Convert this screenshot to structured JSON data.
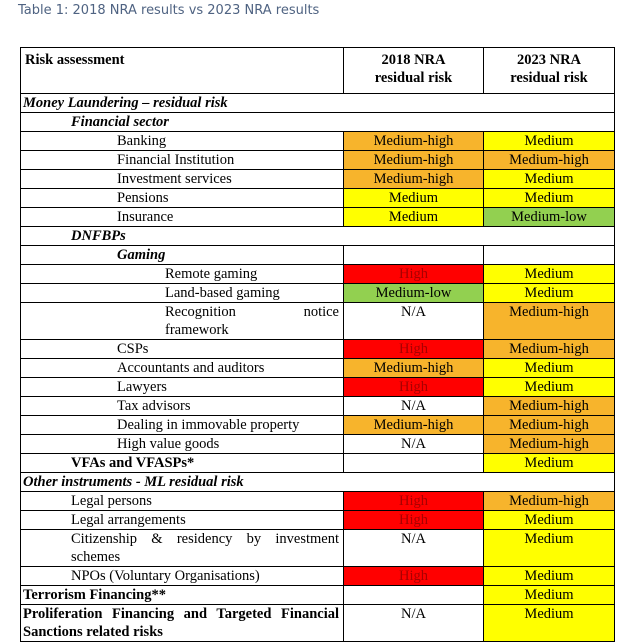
{
  "caption": "Table 1: 2018 NRA results vs 2023 NRA results",
  "table": {
    "header": {
      "label": "Risk assessment",
      "col2018": [
        "2018 NRA",
        "residual risk"
      ],
      "col2023": [
        "2023 NRA",
        "residual risk"
      ]
    },
    "rows": [
      {
        "label": "Money Laundering – residual risk",
        "level": 0,
        "style": "bold-italic"
      },
      {
        "label": "Financial sector",
        "level": 1,
        "style": "bold-italic"
      },
      {
        "label": "Banking",
        "level": 2,
        "style": "normal",
        "r2018": {
          "text": "Medium-high",
          "fill": "#f7b42c"
        },
        "r2023": {
          "text": "Medium",
          "fill": "#ffff00"
        }
      },
      {
        "label": "Financial Institution",
        "level": 2,
        "style": "normal",
        "r2018": {
          "text": "Medium-high",
          "fill": "#f7b42c"
        },
        "r2023": {
          "text": "Medium-high",
          "fill": "#f7b42c"
        }
      },
      {
        "label": "Investment services",
        "level": 2,
        "style": "normal",
        "r2018": {
          "text": "Medium-high",
          "fill": "#f7b42c"
        },
        "r2023": {
          "text": "Medium",
          "fill": "#ffff00"
        }
      },
      {
        "label": "Pensions",
        "level": 2,
        "style": "normal",
        "r2018": {
          "text": "Medium",
          "fill": "#ffff00"
        },
        "r2023": {
          "text": "Medium",
          "fill": "#ffff00"
        }
      },
      {
        "label": "Insurance",
        "level": 2,
        "style": "normal",
        "r2018": {
          "text": "Medium",
          "fill": "#ffff00"
        },
        "r2023": {
          "text": "Medium-low",
          "fill": "#92d050"
        }
      },
      {
        "label": "DNFBPs",
        "level": 1,
        "style": "bold-italic"
      },
      {
        "label": "Gaming",
        "level": 2,
        "style": "bold-italic",
        "r2018": null,
        "r2023": null
      },
      {
        "label": "Remote gaming",
        "level": 3,
        "style": "normal",
        "r2018": {
          "text": "High",
          "fill": "#ff0000",
          "ink": "#a80000"
        },
        "r2023": {
          "text": "Medium",
          "fill": "#ffff00"
        }
      },
      {
        "label": "Land-based gaming",
        "level": 3,
        "style": "normal",
        "r2018": {
          "text": "Medium-low",
          "fill": "#92d050"
        },
        "r2023": {
          "text": "Medium",
          "fill": "#ffff00"
        }
      },
      {
        "label": "Recognition notice framework",
        "level": 3,
        "style": "normal",
        "r2018": {
          "text": "N/A",
          "fill": "#ffffff"
        },
        "r2023": {
          "text": "Medium-high",
          "fill": "#f7b42c"
        }
      },
      {
        "label": "CSPs",
        "level": 2,
        "style": "normal",
        "r2018": {
          "text": "High",
          "fill": "#ff0000",
          "ink": "#a80000"
        },
        "r2023": {
          "text": "Medium-high",
          "fill": "#f7b42c"
        }
      },
      {
        "label": "Accountants and auditors",
        "level": 2,
        "style": "normal",
        "r2018": {
          "text": "Medium-high",
          "fill": "#f7b42c"
        },
        "r2023": {
          "text": "Medium",
          "fill": "#ffff00"
        }
      },
      {
        "label": "Lawyers",
        "level": 2,
        "style": "normal",
        "r2018": {
          "text": "High",
          "fill": "#ff0000",
          "ink": "#a80000"
        },
        "r2023": {
          "text": "Medium",
          "fill": "#ffff00"
        }
      },
      {
        "label": "Tax advisors",
        "level": 2,
        "style": "normal",
        "r2018": {
          "text": "N/A",
          "fill": "#ffffff"
        },
        "r2023": {
          "text": "Medium-high",
          "fill": "#f7b42c"
        }
      },
      {
        "label": "Dealing in immovable property",
        "level": 2,
        "style": "normal",
        "r2018": {
          "text": "Medium-high",
          "fill": "#f7b42c"
        },
        "r2023": {
          "text": "Medium-high",
          "fill": "#f7b42c"
        }
      },
      {
        "label": "High value goods",
        "level": 2,
        "style": "normal",
        "r2018": {
          "text": "N/A",
          "fill": "#ffffff"
        },
        "r2023": {
          "text": "Medium-high",
          "fill": "#f7b42c"
        }
      },
      {
        "label": "VFAs and VFASPs*",
        "level": 1,
        "style": "bold",
        "r2018": null,
        "r2023": {
          "text": "Medium",
          "fill": "#ffff00"
        }
      },
      {
        "label": "Other instruments - ML residual risk",
        "level": 0,
        "style": "bold-italic"
      },
      {
        "label": "Legal persons",
        "level": 1,
        "style": "normal",
        "r2018": {
          "text": "High",
          "fill": "#ff0000",
          "ink": "#a80000"
        },
        "r2023": {
          "text": "Medium-high",
          "fill": "#f7b42c"
        }
      },
      {
        "label": "Legal arrangements",
        "level": 1,
        "style": "normal",
        "r2018": {
          "text": "High",
          "fill": "#ff0000",
          "ink": "#a80000"
        },
        "r2023": {
          "text": "Medium",
          "fill": "#ffff00"
        }
      },
      {
        "label": "Citizenship & residency by investment schemes",
        "level": 1,
        "style": "normal",
        "r2018": {
          "text": "N/A",
          "fill": "#ffffff"
        },
        "r2023": {
          "text": "Medium",
          "fill": "#ffff00"
        }
      },
      {
        "label": "NPOs (Voluntary Organisations)",
        "level": 1,
        "style": "normal",
        "r2018": {
          "text": "High",
          "fill": "#ff0000",
          "ink": "#a80000"
        },
        "r2023": {
          "text": "Medium",
          "fill": "#ffff00"
        }
      },
      {
        "label": "Terrorism Financing**",
        "level": 0,
        "style": "bold",
        "r2018": null,
        "r2023": {
          "text": "Medium",
          "fill": "#ffff00"
        }
      },
      {
        "label": "Proliferation Financing and Targeted Financial Sanctions related risks",
        "level": 0,
        "style": "bold",
        "r2018": {
          "text": "N/A",
          "fill": "#ffffff"
        },
        "r2023": {
          "text": "Medium",
          "fill": "#ffff00"
        }
      }
    ]
  }
}
